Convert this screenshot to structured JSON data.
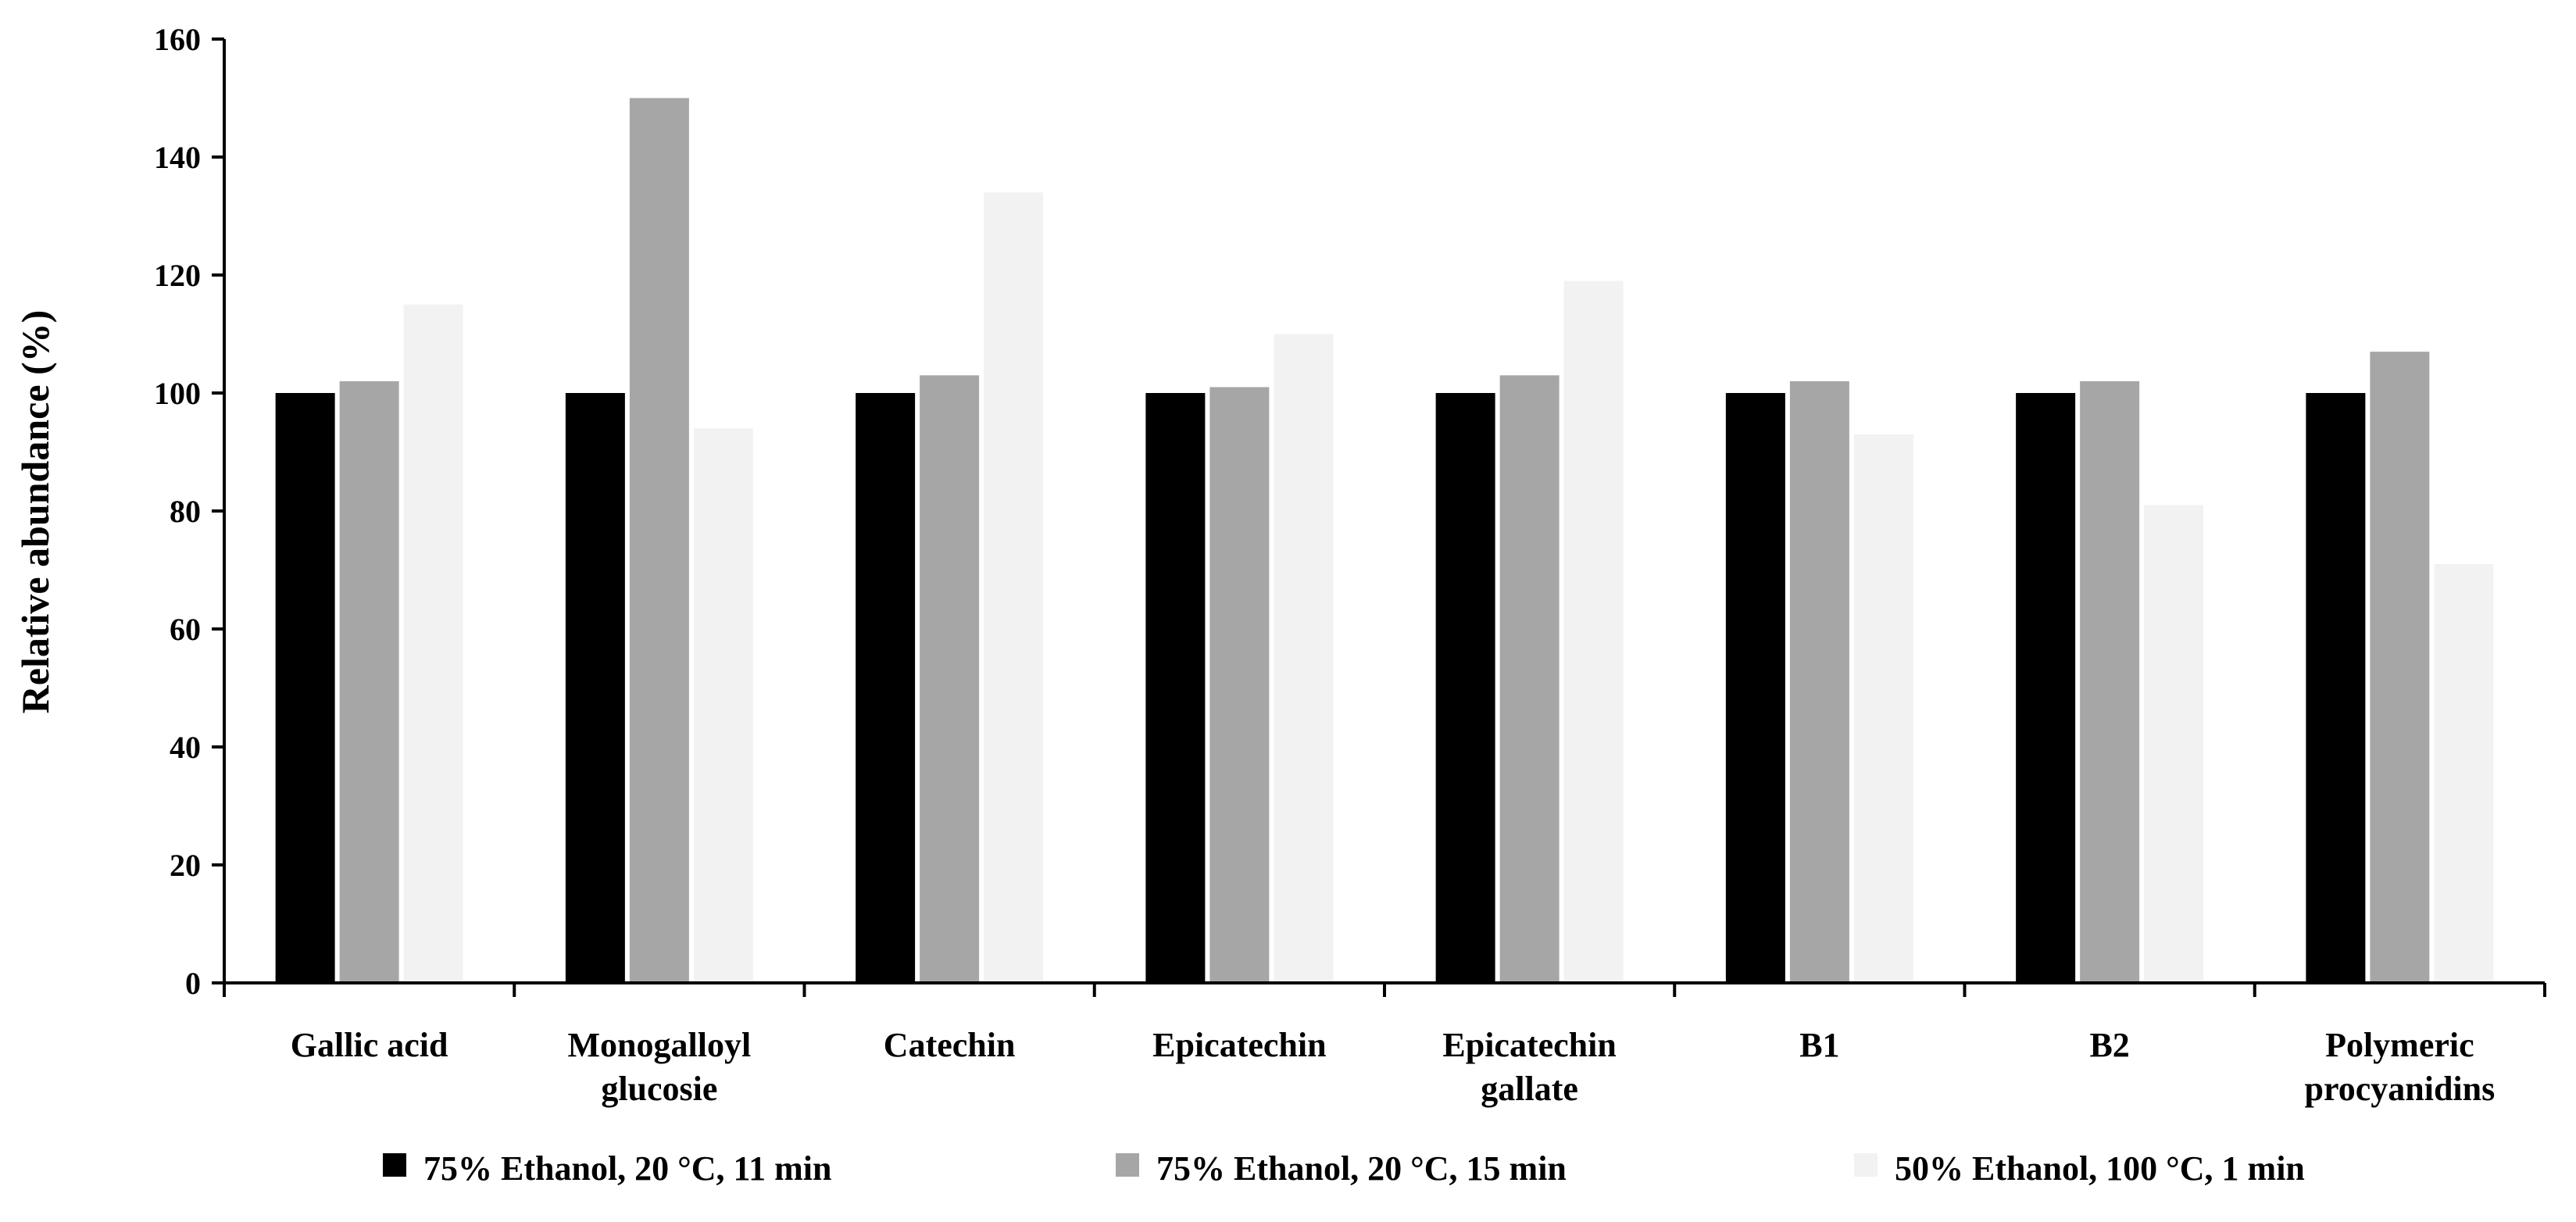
{
  "chart_data": {
    "type": "bar",
    "title": "",
    "xlabel": "",
    "ylabel": "Relative abundance (%)",
    "ylim": [
      0,
      160
    ],
    "yticks": [
      0,
      20,
      40,
      60,
      80,
      100,
      120,
      140,
      160
    ],
    "grid": false,
    "legend_position": "bottom",
    "categories": [
      [
        "Gallic acid"
      ],
      [
        "Monogalloyl",
        "glucosie"
      ],
      [
        "Catechin"
      ],
      [
        "Epicatechin"
      ],
      [
        "Epicatechin",
        "gallate"
      ],
      [
        "B1"
      ],
      [
        "B2"
      ],
      [
        "Polymeric",
        "procyanidins"
      ]
    ],
    "series": [
      {
        "name": "75% Ethanol, 20 °C, 11 min",
        "color": "#000000",
        "values": [
          100,
          100,
          100,
          100,
          100,
          100,
          100,
          100
        ]
      },
      {
        "name": "75% Ethanol, 20 °C, 15 min",
        "color": "#a6a6a6",
        "values": [
          102,
          150,
          103,
          101,
          103,
          102,
          102,
          107
        ]
      },
      {
        "name": "50% Ethanol, 100 °C, 1 min",
        "color": "#f2f2f2",
        "values": [
          115,
          94,
          134,
          110,
          119,
          93,
          81,
          71
        ]
      }
    ]
  }
}
